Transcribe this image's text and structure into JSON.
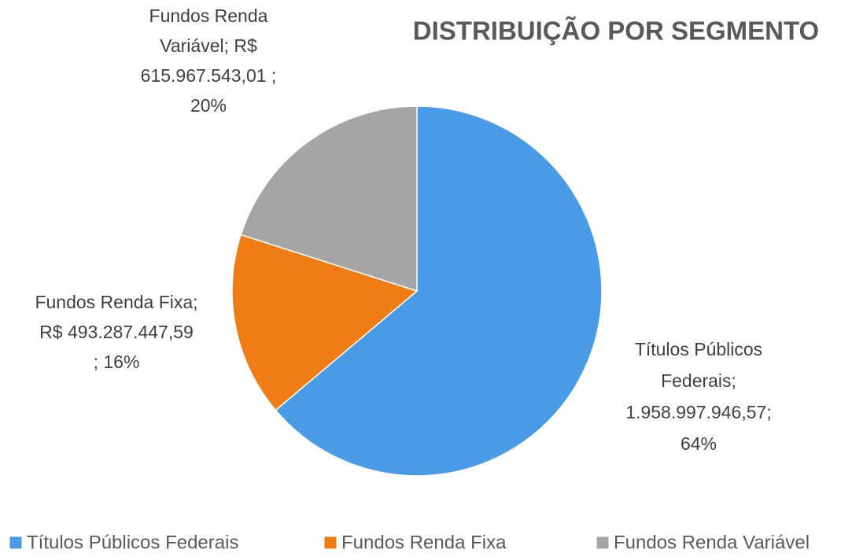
{
  "chart_data": {
    "type": "pie",
    "title": "DISTRIBUIÇÃO POR SEGMENTO",
    "categories": [
      "Títulos Públicos Federais",
      "Fundos Renda Fixa",
      "Fundos Renda Variável"
    ],
    "values": [
      1958997946.57,
      493287447.59,
      615967543.01
    ],
    "value_labels": [
      [
        "Títulos Públicos",
        "Federais;",
        "1.958.997.946,57;",
        "64%"
      ],
      [
        "Fundos Renda Fixa;",
        "R$ 493.287.447,59",
        "; 16%"
      ],
      [
        "Fundos Renda",
        "Variável;  R$",
        "615.967.543,01 ;",
        "20%"
      ]
    ],
    "colors": [
      "#4a9be6",
      "#f07c16",
      "#a5a5a5"
    ],
    "legend": "bottom"
  }
}
